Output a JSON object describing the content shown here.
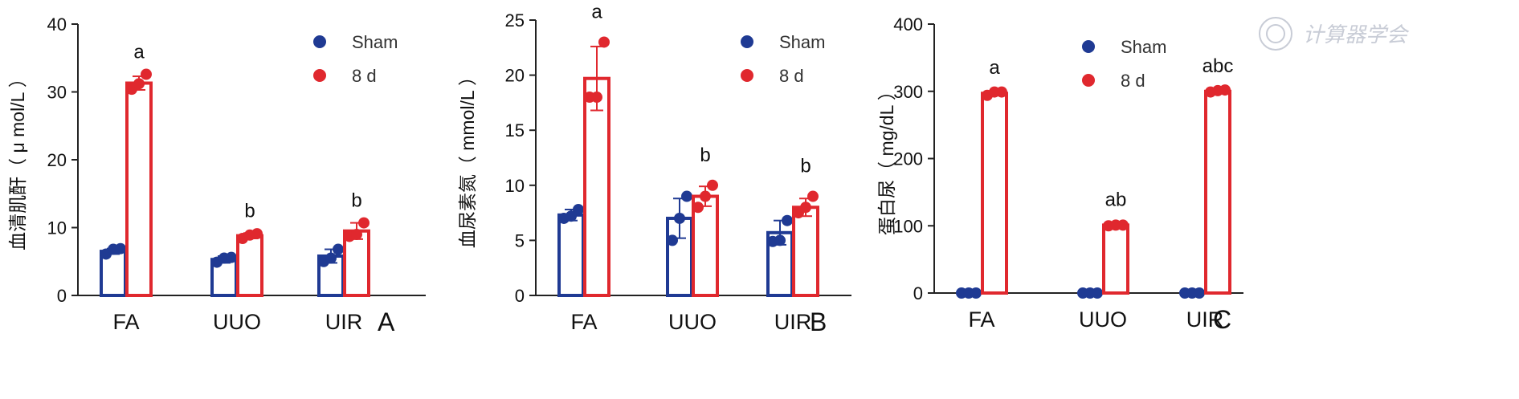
{
  "colors": {
    "sham": "#1f3a93",
    "d8": "#e0282e",
    "axis": "#222222",
    "watermark": "#c8ccd6"
  },
  "legend": [
    {
      "name": "Sham",
      "color": "#1f3a93"
    },
    {
      "name": "8 d",
      "color": "#e0282e"
    }
  ],
  "watermark": {
    "text": "计算器学会",
    "icon": "seal-icon"
  },
  "chart_data": [
    {
      "panel": "A",
      "type": "bar",
      "ylabel": "血清肌酐（ μ mol/L ）",
      "ylim": [
        0,
        40
      ],
      "yticks": [
        0,
        10,
        20,
        30,
        40
      ],
      "categories": [
        "FA",
        "UUO",
        "UIR"
      ],
      "series": [
        {
          "name": "Sham",
          "values": [
            6.5,
            5.3,
            5.8
          ],
          "errors": [
            0.4,
            0.5,
            1.0
          ],
          "points": [
            [
              6.1,
              6.8,
              6.9
            ],
            [
              4.9,
              5.5,
              5.6
            ],
            [
              5.0,
              5.5,
              6.8
            ]
          ]
        },
        {
          "name": "8 d",
          "values": [
            31.3,
            8.8,
            9.5
          ],
          "errors": [
            1.0,
            0.4,
            1.2
          ],
          "points": [
            [
              30.4,
              31.2,
              32.6
            ],
            [
              8.4,
              8.9,
              9.1
            ],
            [
              8.7,
              9.0,
              10.7
            ]
          ]
        }
      ],
      "significance": [
        "a",
        "b",
        "b"
      ],
      "legend_position": "top-right"
    },
    {
      "panel": "B",
      "type": "bar",
      "ylabel": "血尿素氮（ mmol/L ）",
      "ylim": [
        0,
        25
      ],
      "yticks": [
        0,
        5,
        10,
        15,
        20,
        25
      ],
      "categories": [
        "FA",
        "UUO",
        "UIR"
      ],
      "series": [
        {
          "name": "Sham",
          "values": [
            7.3,
            7.0,
            5.7
          ],
          "errors": [
            0.5,
            1.8,
            1.1
          ],
          "points": [
            [
              7.0,
              7.2,
              7.8
            ],
            [
              5.0,
              7.0,
              9.0
            ],
            [
              4.9,
              5.0,
              6.8
            ]
          ]
        },
        {
          "name": "8 d",
          "values": [
            19.7,
            9.0,
            8.0
          ],
          "errors": [
            2.9,
            0.9,
            0.8
          ],
          "points": [
            [
              18.0,
              18.0,
              23.0
            ],
            [
              8.0,
              9.0,
              10.0
            ],
            [
              7.5,
              8.0,
              9.0
            ]
          ]
        }
      ],
      "significance": [
        "a",
        "b",
        "b"
      ],
      "legend_position": "top-right"
    },
    {
      "panel": "C",
      "type": "bar",
      "ylabel": "蛋白尿（ mg/dL ）",
      "ylim": [
        0,
        400
      ],
      "yticks": [
        0,
        100,
        200,
        300,
        400
      ],
      "categories": [
        "FA",
        "UUO",
        "UIR"
      ],
      "series": [
        {
          "name": "Sham",
          "values": [
            0,
            0,
            0
          ],
          "errors": [
            0,
            0,
            0
          ],
          "points": [
            [
              0,
              0,
              0
            ],
            [
              0,
              0,
              0
            ],
            [
              0,
              0,
              0
            ]
          ]
        },
        {
          "name": "8 d",
          "values": [
            297,
            101,
            300
          ],
          "errors": [
            3,
            2,
            2
          ],
          "points": [
            [
              294,
              299,
              299
            ],
            [
              100,
              101,
              101
            ],
            [
              299,
              301,
              302
            ]
          ]
        }
      ],
      "significance": [
        "a",
        "ab",
        "abc"
      ],
      "legend_position": "top-right"
    }
  ]
}
